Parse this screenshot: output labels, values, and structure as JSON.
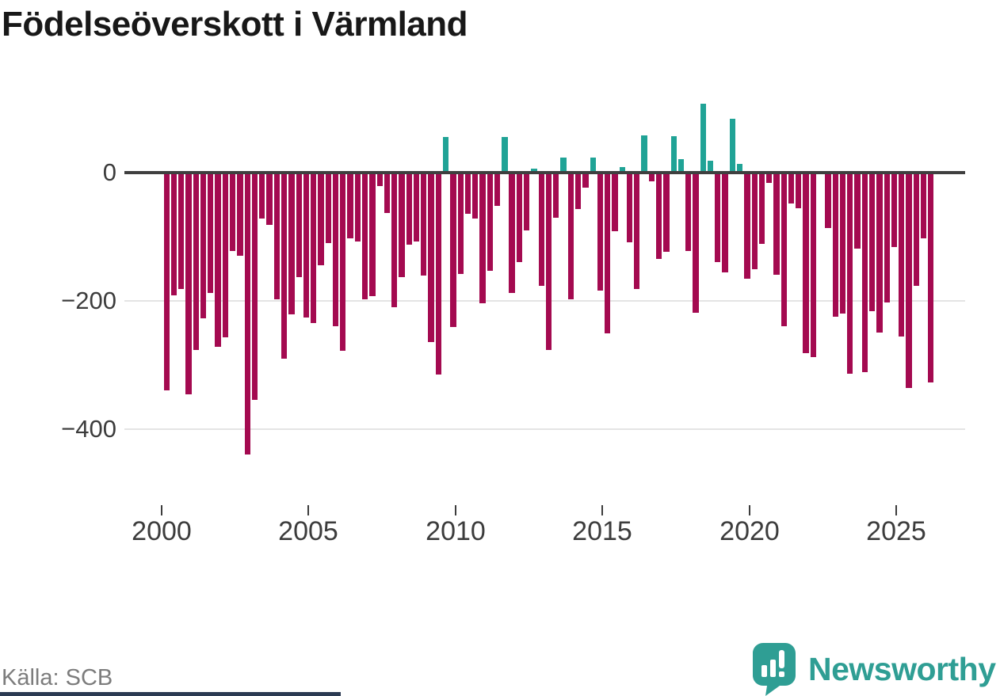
{
  "title": "Födelseöverskott i Värmland",
  "source": "Källa: SCB",
  "branding": {
    "name": "Newsworthy",
    "icon": "newsworthy-speech-bubble-chart-icon"
  },
  "colors": {
    "negative_bar": "#a40a50",
    "positive_bar": "#20a396",
    "zero_axis": "#3f3f3f",
    "gridline": "#e4e4e4",
    "tick_label": "#3c3c3c",
    "source_text": "#7c7c7c",
    "brand_teal": "#2f9e94",
    "footer_bar": "#2b3a52"
  },
  "chart_data": {
    "type": "bar",
    "title": "Födelseöverskott i Värmland",
    "xlabel": "",
    "ylabel": "",
    "start_year": 2000,
    "start_quarter": 1,
    "frequency": "quarterly",
    "x_ticks": [
      2000,
      2005,
      2010,
      2015,
      2020,
      2025
    ],
    "x_tick_labels": [
      "2000",
      "2005",
      "2010",
      "2015",
      "2020",
      "2025"
    ],
    "y_ticks": [
      0,
      -200,
      -400
    ],
    "y_tick_labels": [
      "0",
      "−200",
      "−400"
    ],
    "ylim": [
      -470,
      130
    ],
    "grid": "horizontal",
    "legend": "none",
    "values": [
      -340,
      -191,
      -182,
      -346,
      -277,
      -227,
      -188,
      -272,
      -257,
      -122,
      -130,
      -439,
      -354,
      -71,
      -82,
      -197,
      -290,
      -221,
      -163,
      -226,
      -234,
      -144,
      -110,
      -239,
      -278,
      -102,
      -107,
      -198,
      -193,
      -21,
      -63,
      -210,
      -163,
      -112,
      -107,
      -161,
      -264,
      -315,
      55,
      -241,
      -158,
      -64,
      -72,
      -204,
      -153,
      -52,
      55,
      -188,
      -140,
      -90,
      6,
      -176,
      -276,
      -70,
      23,
      -198,
      -57,
      -23,
      23,
      -184,
      -251,
      -91,
      9,
      -109,
      -181,
      58,
      -13,
      -134,
      -124,
      57,
      21,
      -122,
      -219,
      108,
      19,
      -140,
      -155,
      84,
      14,
      -165,
      -151,
      -111,
      -16,
      -159,
      -239,
      -48,
      -56,
      -282,
      -288,
      0,
      -86,
      -225,
      -220,
      -314,
      -118,
      -311,
      -216,
      -249,
      -202,
      -116,
      -256,
      -336,
      -177,
      -103,
      -327
    ]
  }
}
